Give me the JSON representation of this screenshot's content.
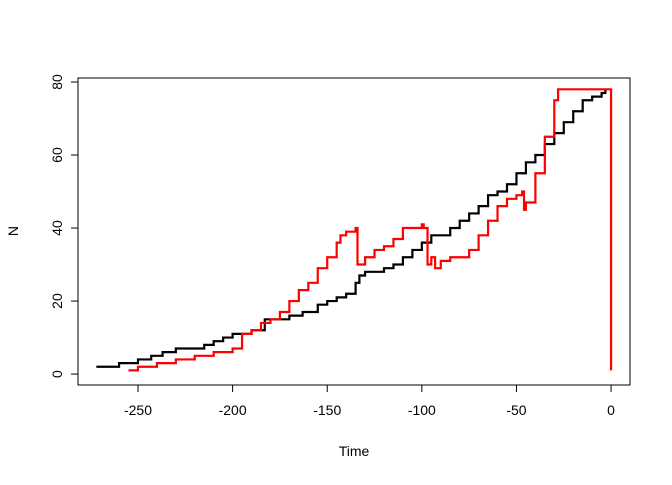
{
  "chart_data": {
    "type": "line",
    "step": true,
    "x_label": "Time",
    "y_label": "N",
    "xlim": [
      -281.7,
      10
    ],
    "ylim": [
      -3,
      81.1
    ],
    "xticks": [
      -250,
      -200,
      -150,
      -100,
      -50,
      0
    ],
    "yticks": [
      0,
      20,
      40,
      60,
      80
    ],
    "series": [
      {
        "color": "#000000",
        "x": [
          -272,
          -260,
          -250,
          -243,
          -237,
          -230,
          -215,
          -210,
          -205,
          -200,
          -190,
          -183,
          -170,
          -163,
          -155,
          -150,
          -145,
          -140,
          -135,
          -133,
          -130,
          -120,
          -115,
          -110,
          -105,
          -100,
          -95,
          -85,
          -80,
          -75,
          -70,
          -65,
          -60,
          -55,
          -50,
          -45,
          -40,
          -35,
          -30,
          -25,
          -20,
          -15,
          -10,
          -5,
          -3
        ],
        "values": [
          2,
          3,
          4,
          5,
          6,
          7,
          8,
          9,
          10,
          11,
          12,
          15,
          16,
          17,
          19,
          20,
          21,
          22,
          25,
          27,
          28,
          29,
          30,
          32,
          34,
          36,
          38,
          40,
          42,
          44,
          46,
          49,
          50,
          52,
          55,
          58,
          60,
          63,
          66,
          69,
          72,
          75,
          76,
          77,
          78
        ]
      },
      {
        "color": "#ff0000",
        "x": [
          -255,
          -250,
          -240,
          -230,
          -220,
          -210,
          -200,
          -195,
          -190,
          -185,
          -180,
          -175,
          -170,
          -165,
          -160,
          -155,
          -150,
          -145,
          -143,
          -140,
          -135,
          -134,
          -130,
          -125,
          -120,
          -115,
          -110,
          -100,
          -99,
          -97,
          -95,
          -93,
          -90,
          -85,
          -75,
          -70,
          -65,
          -60,
          -55,
          -50,
          -47,
          -46,
          -45,
          -40,
          -35,
          -30,
          -28,
          0,
          0
        ],
        "values": [
          1,
          2,
          3,
          4,
          5,
          6,
          7,
          11,
          12,
          14,
          15,
          17,
          20,
          23,
          25,
          29,
          32,
          36,
          38,
          39,
          40,
          30,
          32,
          34,
          35,
          37,
          40,
          41,
          40,
          30,
          32,
          29,
          31,
          32,
          34,
          38,
          42,
          46,
          48,
          49,
          50,
          45,
          47,
          55,
          65,
          75,
          78,
          78,
          1
        ]
      }
    ]
  }
}
